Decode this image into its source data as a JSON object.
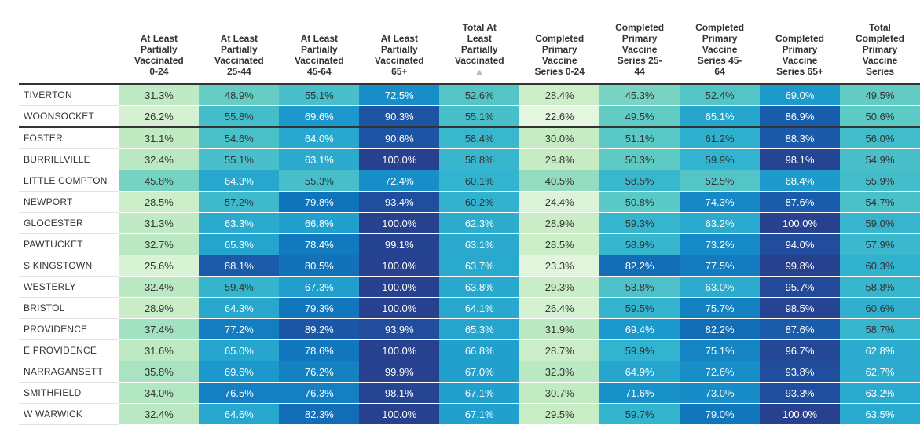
{
  "chart_data": {
    "type": "table",
    "columns": [
      {
        "label": "At Least Partially Vaccinated 0-24",
        "lines": [
          "At Least",
          "Partially",
          "Vaccinated",
          "0-24"
        ]
      },
      {
        "label": "At Least Partially Vaccinated 25-44",
        "lines": [
          "At Least",
          "Partially",
          "Vaccinated",
          "25-44"
        ]
      },
      {
        "label": "At Least Partially Vaccinated 45-64",
        "lines": [
          "At Least",
          "Partially",
          "Vaccinated",
          "45-64"
        ]
      },
      {
        "label": "At Least Partially Vaccinated 65+",
        "lines": [
          "At Least",
          "Partially",
          "Vaccinated",
          "65+"
        ]
      },
      {
        "label": "Total At Least Partially Vaccinated",
        "lines": [
          "Total At",
          "Least",
          "Partially",
          "Vaccinated"
        ],
        "sorted": true
      },
      {
        "label": "Completed Primary Vaccine Series 0-24",
        "lines": [
          "Completed",
          "Primary",
          "Vaccine",
          "Series 0-24"
        ]
      },
      {
        "label": "Completed Primary Vaccine Series 25-44",
        "lines": [
          "Completed",
          "Primary",
          "Vaccine",
          "Series 25-",
          "44"
        ]
      },
      {
        "label": "Completed Primary Vaccine Series 45-64",
        "lines": [
          "Completed",
          "Primary",
          "Vaccine",
          "Series 45-",
          "64"
        ]
      },
      {
        "label": "Completed Primary Vaccine Series 65+",
        "lines": [
          "Completed",
          "Primary",
          "Vaccine",
          "Series 65+"
        ]
      },
      {
        "label": "Total Completed Primary Vaccine Series",
        "lines": [
          "Total",
          "Completed",
          "Primary",
          "Vaccine",
          "Series"
        ]
      }
    ],
    "rows": [
      {
        "name": "TIVERTON",
        "values": [
          31.3,
          48.9,
          55.1,
          72.5,
          52.6,
          28.4,
          45.3,
          52.4,
          69.0,
          49.5
        ]
      },
      {
        "name": "WOONSOCKET",
        "values": [
          26.2,
          55.8,
          69.6,
          90.3,
          55.1,
          22.6,
          49.5,
          65.1,
          86.9,
          50.6
        ],
        "separator_after": true
      },
      {
        "name": "FOSTER",
        "values": [
          31.1,
          54.6,
          64.0,
          90.6,
          58.4,
          30.0,
          51.1,
          61.2,
          88.3,
          56.0
        ]
      },
      {
        "name": "BURRILLVILLE",
        "values": [
          32.4,
          55.1,
          63.1,
          100.0,
          58.8,
          29.8,
          50.3,
          59.9,
          98.1,
          54.9
        ]
      },
      {
        "name": "LITTLE COMPTON",
        "values": [
          45.8,
          64.3,
          55.3,
          72.4,
          60.1,
          40.5,
          58.5,
          52.5,
          68.4,
          55.9
        ]
      },
      {
        "name": "NEWPORT",
        "values": [
          28.5,
          57.2,
          79.8,
          93.4,
          60.2,
          24.4,
          50.8,
          74.3,
          87.6,
          54.7
        ]
      },
      {
        "name": "GLOCESTER",
        "values": [
          31.3,
          63.3,
          66.8,
          100.0,
          62.3,
          28.9,
          59.3,
          63.2,
          100.0,
          59.0
        ]
      },
      {
        "name": "PAWTUCKET",
        "values": [
          32.7,
          65.3,
          78.4,
          99.1,
          63.1,
          28.5,
          58.9,
          73.2,
          94.0,
          57.9
        ]
      },
      {
        "name": "S KINGSTOWN",
        "values": [
          25.6,
          88.1,
          80.5,
          100.0,
          63.7,
          23.3,
          82.2,
          77.5,
          99.8,
          60.3
        ]
      },
      {
        "name": "WESTERLY",
        "values": [
          32.4,
          59.4,
          67.3,
          100.0,
          63.8,
          29.3,
          53.8,
          63.0,
          95.7,
          58.8
        ]
      },
      {
        "name": "BRISTOL",
        "values": [
          28.9,
          64.3,
          79.3,
          100.0,
          64.1,
          26.4,
          59.5,
          75.7,
          98.5,
          60.6
        ]
      },
      {
        "name": "PROVIDENCE",
        "values": [
          37.4,
          77.2,
          89.2,
          93.9,
          65.3,
          31.9,
          69.4,
          82.2,
          87.6,
          58.7
        ]
      },
      {
        "name": "E PROVIDENCE",
        "values": [
          31.6,
          65.0,
          78.6,
          100.0,
          66.8,
          28.7,
          59.9,
          75.1,
          96.7,
          62.8
        ]
      },
      {
        "name": "NARRAGANSETT",
        "values": [
          35.8,
          69.6,
          76.2,
          99.9,
          67.0,
          32.3,
          64.9,
          72.6,
          93.8,
          62.7
        ]
      },
      {
        "name": "SMITHFIELD",
        "values": [
          34.0,
          76.5,
          76.3,
          98.1,
          67.1,
          30.7,
          71.6,
          73.0,
          93.3,
          63.2
        ]
      },
      {
        "name": "W WARWICK",
        "values": [
          32.4,
          64.6,
          82.3,
          100.0,
          67.1,
          29.5,
          59.7,
          79.0,
          100.0,
          63.5
        ]
      }
    ],
    "value_suffix": "%",
    "color_scale": {
      "domain": [
        20,
        30,
        40,
        50,
        60,
        70,
        80,
        90,
        100
      ],
      "colors": [
        "#eef9ea",
        "#c6ecc3",
        "#96ddc0",
        "#5fcbc4",
        "#32b3cf",
        "#1a97cc",
        "#1073bb",
        "#1d55a5",
        "#27418f"
      ]
    },
    "sorted_column_index": 4
  }
}
